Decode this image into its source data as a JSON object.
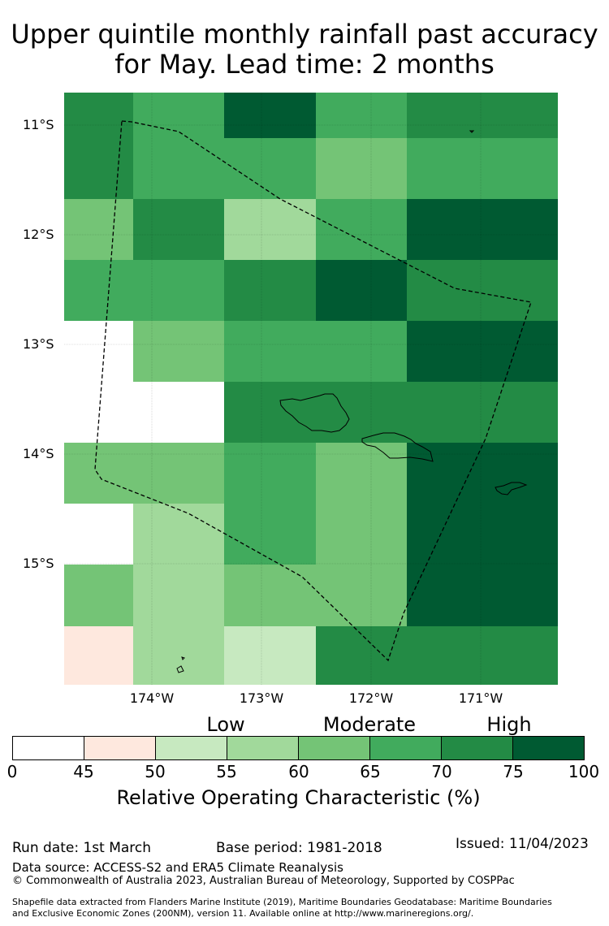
{
  "title": {
    "line1": "Upper quintile monthly rainfall past accuracy",
    "line2": "for May. Lead time: 2 months"
  },
  "map": {
    "lat_labels": [
      "11°S",
      "12°S",
      "13°S",
      "14°S",
      "15°S"
    ],
    "lon_labels": [
      "174°W",
      "173°W",
      "172°W",
      "171°W"
    ],
    "lat_range_deg": [
      -16.5,
      -10.7
    ],
    "lon_range_deg": [
      -174.8,
      -170.3
    ],
    "grid_rows": [
      [
        6,
        5,
        7,
        5,
        6
      ],
      [
        6,
        5,
        5,
        4,
        5
      ],
      [
        4,
        6,
        3,
        5,
        7
      ],
      [
        5,
        5,
        6,
        7,
        7
      ],
      [
        0,
        4,
        5,
        5,
        7
      ],
      [
        0,
        0,
        6,
        6,
        4
      ],
      [
        4,
        4,
        5,
        4,
        7
      ],
      [
        0,
        3,
        5,
        4,
        5
      ],
      [
        4,
        3,
        4,
        4,
        7
      ],
      [
        1,
        3,
        2,
        6,
        6
      ]
    ],
    "grid_overrides": [
      {
        "row": 2,
        "col": 3,
        "value": 5
      },
      {
        "row": 3,
        "col": 4,
        "value": 6,
        "note": "eastern edge cell"
      },
      {
        "row": 5,
        "col": 4,
        "value": 6,
        "note": "eastern edge cell"
      },
      {
        "row": 7,
        "col": 4,
        "value": 7,
        "note": "eastern edge cell"
      }
    ],
    "boundary_name": "Samoa Exclusive Economic Zone",
    "islands": [
      "Savai'i",
      "Upolu",
      "Tutuila",
      "Rose Atoll"
    ]
  },
  "legend": {
    "categories": [
      "Low",
      "Moderate",
      "High"
    ],
    "tick_labels": [
      "0",
      "45",
      "50",
      "55",
      "60",
      "65",
      "70",
      "75",
      "100"
    ],
    "colors": [
      "#ffffff",
      "#fee8de",
      "#c7e9c0",
      "#a1d99b",
      "#74c476",
      "#41ab5d",
      "#238b45",
      "#005a32"
    ],
    "axis_title": "Relative Operating Characteristic (%)"
  },
  "footer": {
    "run_date": "Run date: 1st March",
    "base_period": "Base period: 1981-2018",
    "issued": "Issued: 11/04/2023",
    "data_source": "Data source: ACCESS-S2 and ERA5 Climate Reanalysis",
    "copyright": "© Commonwealth of Australia 2023, Australian Bureau of Meteorology, Supported by COSPPac",
    "shapefile_line1": "Shapefile data extracted from Flanders Marine Institute (2019), Maritime Boundaries Geodatabase: Maritime Boundaries",
    "shapefile_line2": "and Exclusive Economic Zones (200NM), version 11. Available online at http://www.marineregions.org/."
  }
}
